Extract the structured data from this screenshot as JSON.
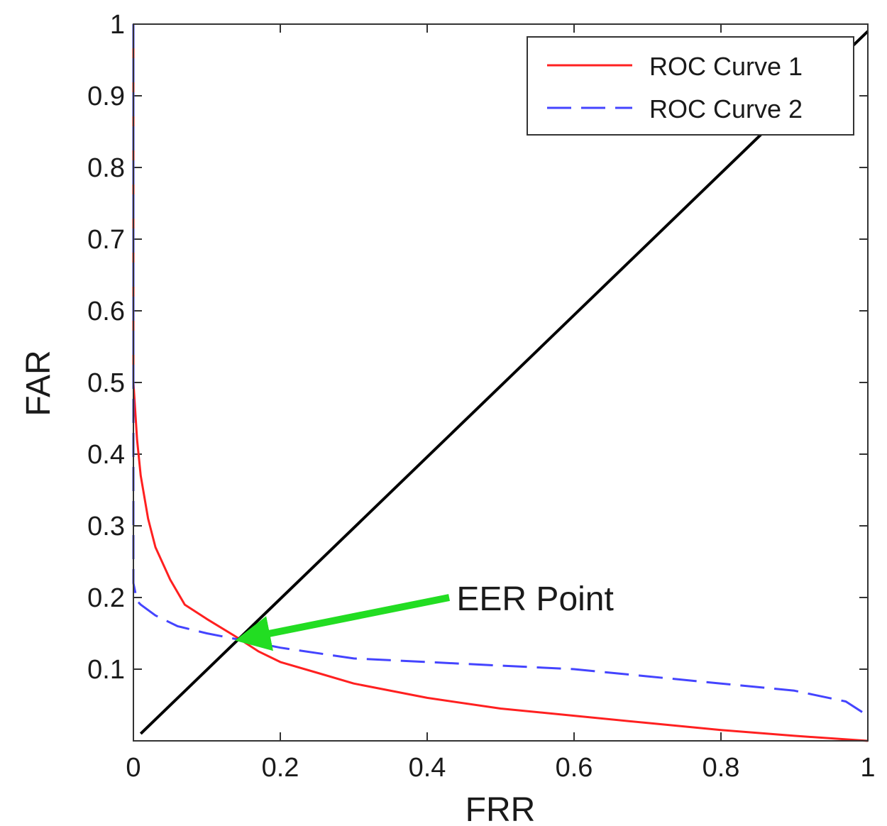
{
  "chart_data": {
    "type": "line",
    "title": "",
    "xlabel": "FRR",
    "ylabel": "FAR",
    "xlim": [
      0,
      1
    ],
    "ylim": [
      0,
      1
    ],
    "grid": false,
    "legend_placement": "top-right",
    "x_ticks": [
      {
        "value": 0,
        "label": "0"
      },
      {
        "value": 0.2,
        "label": "0.2"
      },
      {
        "value": 0.4,
        "label": "0.4"
      },
      {
        "value": 0.6,
        "label": "0.6"
      },
      {
        "value": 0.8,
        "label": "0.8"
      },
      {
        "value": 1,
        "label": "1"
      }
    ],
    "y_ticks": [
      {
        "value": 0.1,
        "label": "0.1"
      },
      {
        "value": 0.2,
        "label": "0.2"
      },
      {
        "value": 0.3,
        "label": "0.3"
      },
      {
        "value": 0.4,
        "label": "0.4"
      },
      {
        "value": 0.5,
        "label": "0.5"
      },
      {
        "value": 0.6,
        "label": "0.6"
      },
      {
        "value": 0.7,
        "label": "0.7"
      },
      {
        "value": 0.8,
        "label": "0.8"
      },
      {
        "value": 0.9,
        "label": "0.9"
      },
      {
        "value": 1,
        "label": "1"
      }
    ],
    "series": [
      {
        "name": "ROC Curve 1",
        "color": "#ff2020",
        "style": "solid",
        "x": [
          0,
          0,
          0.005,
          0.01,
          0.02,
          0.03,
          0.05,
          0.07,
          0.1,
          0.14,
          0.17,
          0.2,
          0.25,
          0.3,
          0.4,
          0.5,
          0.6,
          0.7,
          0.8,
          0.9,
          1
        ],
        "y": [
          1,
          0.5,
          0.42,
          0.37,
          0.31,
          0.27,
          0.225,
          0.19,
          0.17,
          0.145,
          0.125,
          0.11,
          0.095,
          0.08,
          0.06,
          0.045,
          0.035,
          0.025,
          0.015,
          0.007,
          0
        ]
      },
      {
        "name": "ROC Curve 2",
        "color": "#4444ff",
        "style": "dashed",
        "x": [
          0,
          0,
          0.005,
          0.01,
          0.03,
          0.06,
          0.1,
          0.15,
          0.2,
          0.3,
          0.4,
          0.5,
          0.6,
          0.7,
          0.8,
          0.9,
          0.97,
          1
        ],
        "y": [
          1,
          0.22,
          0.195,
          0.19,
          0.175,
          0.16,
          0.15,
          0.14,
          0.13,
          0.115,
          0.11,
          0.105,
          0.1,
          0.09,
          0.08,
          0.07,
          0.055,
          0.035
        ]
      },
      {
        "name": "",
        "color": "#000000",
        "style": "solid",
        "x": [
          0.01,
          1
        ],
        "y": [
          0.01,
          0.99
        ]
      }
    ],
    "annotations": [
      {
        "text": "EER Point",
        "color": "#22dd22",
        "arrow_from": [
          0.43,
          0.2
        ],
        "arrow_to": [
          0.14,
          0.14
        ],
        "label_at": [
          0.44,
          0.2
        ]
      }
    ]
  }
}
